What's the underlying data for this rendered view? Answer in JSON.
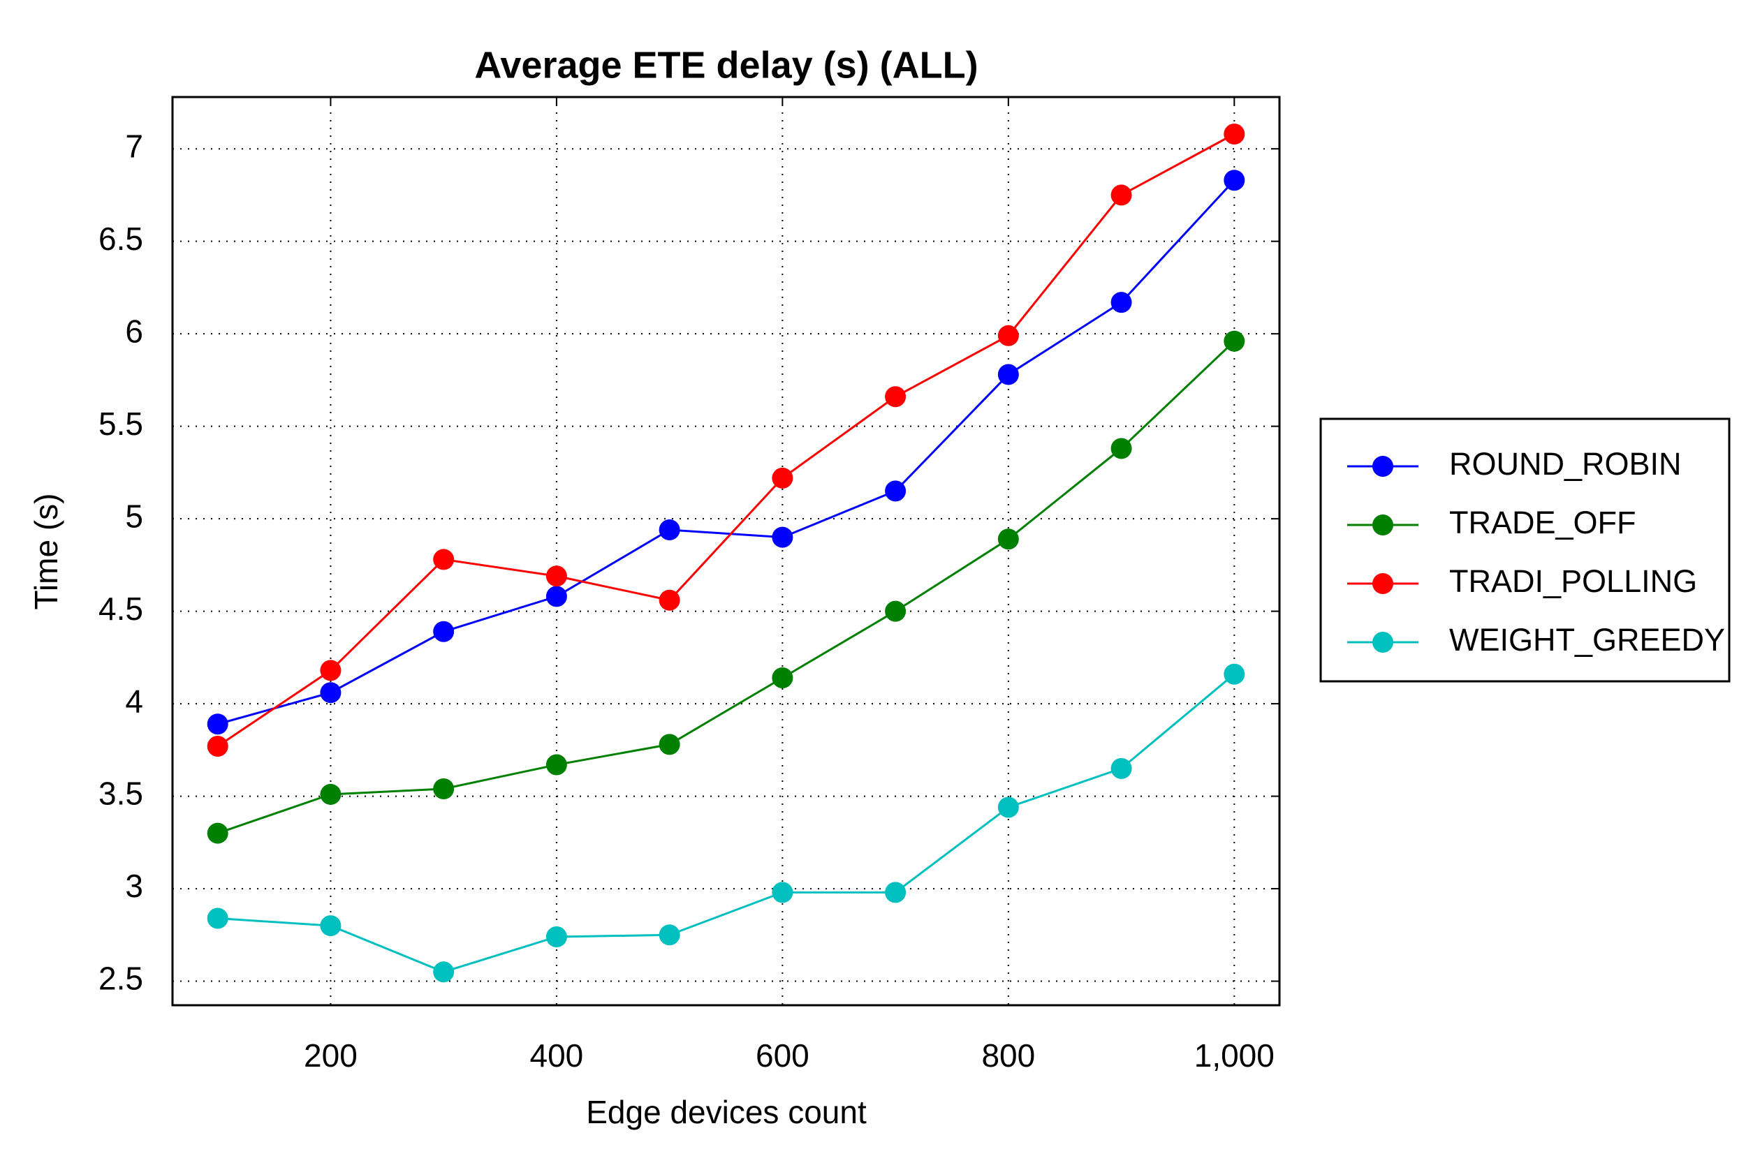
{
  "chart_data": {
    "type": "line",
    "title": "Average ETE delay (s) (ALL)",
    "x_label": "Edge devices count",
    "y_label": "Time (s)",
    "x": [
      100,
      200,
      300,
      400,
      500,
      600,
      700,
      800,
      900,
      1000
    ],
    "series": [
      {
        "name": "ROUND_ROBIN",
        "color": "#0000ff",
        "values": [
          3.89,
          4.06,
          4.39,
          4.58,
          4.94,
          4.9,
          5.15,
          5.78,
          6.17,
          6.83
        ]
      },
      {
        "name": "TRADE_OFF",
        "color": "#008000",
        "values": [
          3.3,
          3.51,
          3.54,
          3.67,
          3.78,
          4.14,
          4.5,
          4.89,
          5.38,
          5.96
        ]
      },
      {
        "name": "TRADI_POLLING",
        "color": "#ff0000",
        "values": [
          3.77,
          4.18,
          4.78,
          4.69,
          4.56,
          5.22,
          5.66,
          5.99,
          6.75,
          7.08
        ]
      },
      {
        "name": "WEIGHT_GREEDY",
        "color": "#00bfbf",
        "values": [
          2.84,
          2.8,
          2.55,
          2.74,
          2.75,
          2.98,
          2.98,
          3.44,
          3.65,
          4.16
        ]
      }
    ],
    "xlim": [
      60,
      1040
    ],
    "ylim": [
      2.37,
      7.28
    ],
    "xticks": [
      200,
      400,
      600,
      800,
      {
        "value": 1000,
        "label": "1,000"
      }
    ],
    "yticks": [
      2.5,
      3,
      3.5,
      4,
      4.5,
      5,
      5.5,
      6,
      6.5,
      7
    ],
    "grid": true,
    "legend": "right"
  }
}
